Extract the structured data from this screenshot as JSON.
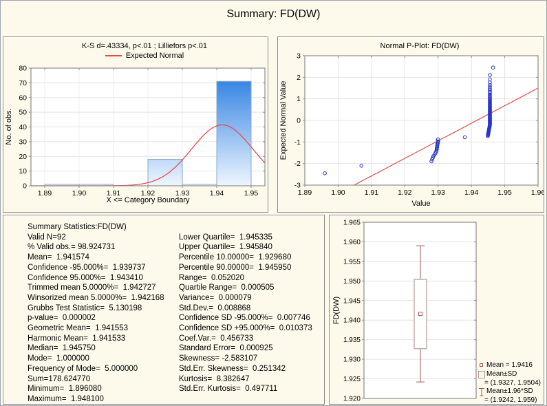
{
  "page": {
    "title": "Summary: FD(DW)"
  },
  "colors": {
    "background": "#fdf9eb",
    "bar_top": "#2178e0",
    "bar_bottom": "#eef6ff",
    "bar_stroke": "#8aa8cd",
    "normal_curve": "#e34b4b",
    "point_stroke": "#2a35c8",
    "frame": "#8c8c8c",
    "grid": "#e3e3e3",
    "grid_light": "#efefef",
    "box_stroke": "#b49a9a",
    "whisker": "#a05858",
    "mean_marker": "#b05454"
  },
  "stats": {
    "left": [
      "Summary Statistics:FD(DW)",
      "Valid N=92",
      "% Valid obs.= 98.924731",
      "Mean=  1.941574",
      "Confidence -95.000%=  1.939737",
      "Confidence 95.000%=  1.943410",
      "Trimmed mean 5.0000%=  1.942727",
      "Winsorized mean 5.0000%=  1.942168",
      "Grubbs Test Statistic=  5.130198",
      "p-value=  0.000002",
      "Geometric Mean=  1.941553",
      "Harmonic Mean=  1.941533",
      "Median=  1.945750",
      "Mode=  1.000000",
      "Frequency of Mode=  5.000000",
      "Sum=178.624770",
      "Minimum=  1.896080",
      "Maximum=  1.948100"
    ],
    "right": [
      "Lower Quartile=  1.945335",
      "Upper Quartile=  1.945840",
      "Percentile 10.00000=  1.929680",
      "Percentile 90.00000=  1.945950",
      "Range=  0.052020",
      "Quartile Range=  0.000505",
      "Variance=  0.000079",
      "Std.Dev.=  0.008868",
      "Confidence SD -95.000%=  0.007746",
      "Confidence SD +95.000%=  0.010373",
      "Coef.Var.=  0.456733",
      "Standard Error=  0.000925",
      "Skewness= -2.583107",
      "Std.Err. Skewness=  0.251342",
      "Kurtosis=  8.382647",
      "Std.Err. Kurtosis=  0.497711"
    ]
  },
  "chart_data": [
    {
      "type": "bar",
      "name": "histogram",
      "title": "K-S d=.43334, p<.01 ; Lilliefors p<.01",
      "legend": [
        "Expected Normal"
      ],
      "legend_position": "top",
      "xlabel": "X <= Category Boundary",
      "ylabel": "No. of obs.",
      "xlim": [
        1.886,
        1.954
      ],
      "ylim": [
        0,
        80
      ],
      "xticks": [
        1.89,
        1.9,
        1.91,
        1.92,
        1.93,
        1.94,
        1.95
      ],
      "yticks": [
        0,
        10,
        20,
        30,
        40,
        50,
        60,
        70,
        80
      ],
      "grid": true,
      "bin_width": 0.01,
      "bins": [
        {
          "x0": 1.89,
          "count": 1
        },
        {
          "x0": 1.9,
          "count": 1
        },
        {
          "x0": 1.91,
          "count": 0
        },
        {
          "x0": 1.92,
          "count": 18
        },
        {
          "x0": 1.93,
          "count": 1
        },
        {
          "x0": 1.94,
          "count": 71
        }
      ],
      "normal_curve": {
        "mean": 1.9416,
        "sd": 0.008868,
        "peak": 41.4
      }
    },
    {
      "type": "scatter",
      "name": "normal-probability-plot",
      "title": "Normal P-Plot: FD(DW)",
      "xlabel": "Value",
      "ylabel": "Expected Normal Value",
      "xlim": [
        1.89,
        1.96
      ],
      "ylim": [
        -3,
        3
      ],
      "xticks": [
        1.89,
        1.9,
        1.91,
        1.92,
        1.93,
        1.94,
        1.95,
        1.96
      ],
      "yticks": [
        -3,
        -2,
        -1,
        0,
        1,
        2,
        3
      ],
      "grid": true,
      "trend_line": {
        "x1": 1.9048,
        "y1": -3,
        "x2": 1.96,
        "y2": 1.5
      },
      "points": [
        [
          1.896,
          -2.45
        ],
        [
          1.907,
          -2.1
        ],
        [
          1.938,
          -0.78
        ],
        [
          1.9465,
          2.45
        ],
        [
          1.928,
          -1.9
        ],
        [
          1.9282,
          -1.81
        ],
        [
          1.9284,
          -1.73
        ],
        [
          1.9286,
          -1.66
        ],
        [
          1.9289,
          -1.59
        ],
        [
          1.9292,
          -1.52
        ],
        [
          1.9294,
          -1.46
        ],
        [
          1.9295,
          -1.4
        ],
        [
          1.9296,
          -1.34
        ],
        [
          1.9296,
          -1.29
        ],
        [
          1.9297,
          -1.24
        ],
        [
          1.9297,
          -1.19
        ],
        [
          1.9298,
          -1.15
        ],
        [
          1.9298,
          -1.1
        ],
        [
          1.9299,
          -1.06
        ],
        [
          1.9299,
          -1.01
        ],
        [
          1.93,
          -0.97
        ],
        [
          1.93,
          -0.88
        ]
      ],
      "cluster": {
        "x": 1.94555,
        "x_bend": 0.0012,
        "n": 70,
        "rank_start": 22,
        "rank_total": 92,
        "distribution": "normal-quantiles"
      }
    },
    {
      "type": "box",
      "name": "boxplot",
      "ylabel": "FD(DW)",
      "ylim": [
        1.92,
        1.965
      ],
      "yticks": [
        1.92,
        1.925,
        1.93,
        1.935,
        1.94,
        1.945,
        1.95,
        1.955,
        1.96,
        1.965
      ],
      "grid": true,
      "mean": 1.9416,
      "box_low": 1.9327,
      "box_high": 1.9504,
      "whisker_low": 1.9242,
      "whisker_high": 1.959,
      "legend": [
        "Mean = 1.9416",
        "Mean±SD",
        "= (1.9327, 1.9504)",
        "Mean±1.96*SD",
        "= (1.9242, 1.959)"
      ],
      "legend_position": "bottom-right"
    }
  ]
}
